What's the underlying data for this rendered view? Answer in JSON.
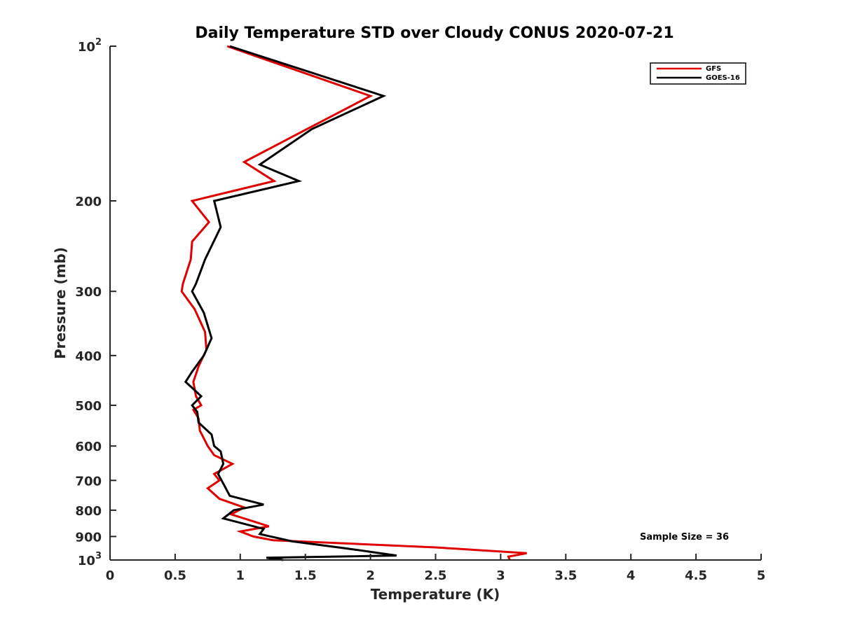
{
  "chart_data": {
    "type": "line",
    "title": "Daily Temperature STD over Cloudy CONUS 2020-07-21",
    "xlabel": "Temperature (K)",
    "ylabel": "Pressure (mb)",
    "xlim": [
      0,
      5
    ],
    "ylim": [
      100,
      1000
    ],
    "y_scale": "log",
    "y_direction": "reversed",
    "grid": false,
    "legend_position": "top-right",
    "x_ticks": [
      {
        "value": 0,
        "label": "0"
      },
      {
        "value": 0.5,
        "label": "0.5"
      },
      {
        "value": 1,
        "label": "1"
      },
      {
        "value": 1.5,
        "label": "1.5"
      },
      {
        "value": 2,
        "label": "2"
      },
      {
        "value": 2.5,
        "label": "2.5"
      },
      {
        "value": 3,
        "label": "3"
      },
      {
        "value": 3.5,
        "label": "3.5"
      },
      {
        "value": 4,
        "label": "4"
      },
      {
        "value": 4.5,
        "label": "4.5"
      },
      {
        "value": 5,
        "label": "5"
      }
    ],
    "y_ticks": [
      {
        "value": 100,
        "base": "10",
        "exp": "2"
      },
      {
        "value": 200,
        "label": "200"
      },
      {
        "value": 300,
        "label": "300"
      },
      {
        "value": 400,
        "label": "400"
      },
      {
        "value": 500,
        "label": "500"
      },
      {
        "value": 600,
        "label": "600"
      },
      {
        "value": 700,
        "label": "700"
      },
      {
        "value": 800,
        "label": "800"
      },
      {
        "value": 900,
        "label": "900"
      },
      {
        "value": 1000,
        "base": "10",
        "exp": "3"
      }
    ],
    "series": [
      {
        "name": "GFS",
        "color": "#e00000",
        "points": [
          [
            0.9,
            100
          ],
          [
            2.0,
            125
          ],
          [
            1.4,
            150
          ],
          [
            1.03,
            168
          ],
          [
            1.26,
            183
          ],
          [
            0.63,
            200
          ],
          [
            0.76,
            220
          ],
          [
            0.63,
            240
          ],
          [
            0.62,
            260
          ],
          [
            0.56,
            290
          ],
          [
            0.55,
            300
          ],
          [
            0.65,
            325
          ],
          [
            0.73,
            360
          ],
          [
            0.74,
            390
          ],
          [
            0.68,
            420
          ],
          [
            0.64,
            450
          ],
          [
            0.66,
            480
          ],
          [
            0.7,
            500
          ],
          [
            0.64,
            510
          ],
          [
            0.68,
            530
          ],
          [
            0.69,
            560
          ],
          [
            0.75,
            600
          ],
          [
            0.8,
            625
          ],
          [
            0.94,
            650
          ],
          [
            0.8,
            680
          ],
          [
            0.84,
            700
          ],
          [
            0.75,
            725
          ],
          [
            0.84,
            760
          ],
          [
            1.03,
            790
          ],
          [
            0.93,
            815
          ],
          [
            1.22,
            860
          ],
          [
            1.0,
            880
          ],
          [
            1.1,
            900
          ],
          [
            1.25,
            915
          ],
          [
            2.5,
            945
          ],
          [
            3.2,
            970
          ],
          [
            3.06,
            985
          ],
          [
            3.07,
            1000
          ]
        ]
      },
      {
        "name": "GOES-16",
        "color": "#000000",
        "points": [
          [
            0.92,
            100
          ],
          [
            2.1,
            125
          ],
          [
            1.55,
            145
          ],
          [
            1.15,
            170
          ],
          [
            1.45,
            183
          ],
          [
            0.8,
            200
          ],
          [
            0.85,
            225
          ],
          [
            0.73,
            260
          ],
          [
            0.66,
            290
          ],
          [
            0.63,
            300
          ],
          [
            0.72,
            330
          ],
          [
            0.78,
            370
          ],
          [
            0.72,
            400
          ],
          [
            0.63,
            430
          ],
          [
            0.58,
            450
          ],
          [
            0.7,
            480
          ],
          [
            0.63,
            500
          ],
          [
            0.67,
            515
          ],
          [
            0.68,
            540
          ],
          [
            0.78,
            570
          ],
          [
            0.8,
            600
          ],
          [
            0.85,
            615
          ],
          [
            0.87,
            650
          ],
          [
            0.83,
            680
          ],
          [
            0.87,
            710
          ],
          [
            0.92,
            750
          ],
          [
            1.18,
            780
          ],
          [
            0.95,
            800
          ],
          [
            0.87,
            830
          ],
          [
            1.18,
            870
          ],
          [
            1.15,
            890
          ],
          [
            1.4,
            920
          ],
          [
            1.82,
            950
          ],
          [
            2.2,
            980
          ],
          [
            1.2,
            990
          ],
          [
            1.33,
            1000
          ]
        ]
      }
    ],
    "annotation": "Sample Size = 36"
  }
}
